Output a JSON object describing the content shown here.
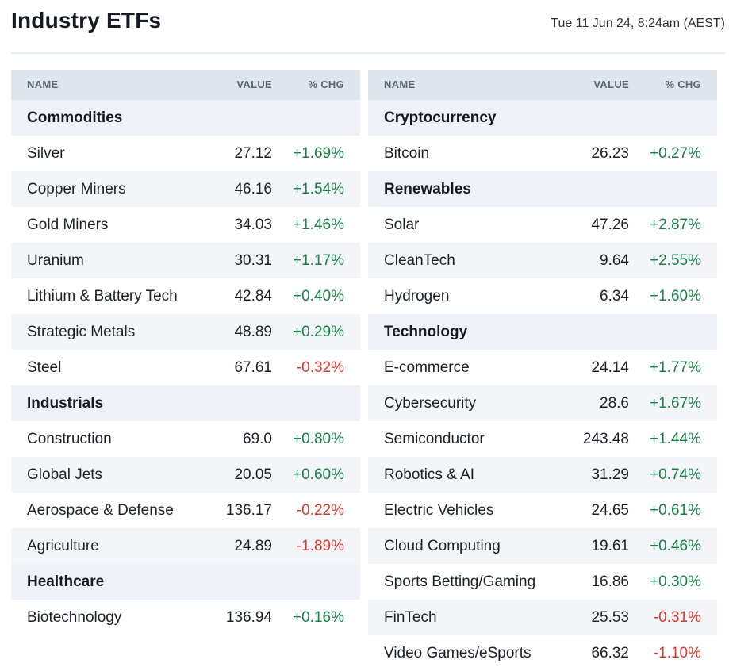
{
  "header": {
    "title": "Industry ETFs",
    "timestamp": "Tue 11 Jun 24, 8:24am (AEST)"
  },
  "columns": {
    "name": "NAME",
    "value": "VALUE",
    "change": "% CHG"
  },
  "colors": {
    "positive": "#1b7f4a",
    "negative": "#d63a2f",
    "header_bg": "#dfe5ec",
    "category_bg": "#eef1f5",
    "alt_row_bg": "#f3f5f8"
  },
  "left": {
    "commodities": {
      "label": "Commodities",
      "rows": [
        {
          "name": "Silver",
          "value": "27.12",
          "change": "+1.69%"
        },
        {
          "name": "Copper Miners",
          "value": "46.16",
          "change": "+1.54%"
        },
        {
          "name": "Gold Miners",
          "value": "34.03",
          "change": "+1.46%"
        },
        {
          "name": "Uranium",
          "value": "30.31",
          "change": "+1.17%"
        },
        {
          "name": "Lithium & Battery Tech",
          "value": "42.84",
          "change": "+0.40%"
        },
        {
          "name": "Strategic Metals",
          "value": "48.89",
          "change": "+0.29%"
        },
        {
          "name": "Steel",
          "value": "67.61",
          "change": "-0.32%"
        }
      ]
    },
    "industrials": {
      "label": "Industrials",
      "rows": [
        {
          "name": "Construction",
          "value": "69.0",
          "change": "+0.80%"
        },
        {
          "name": "Global Jets",
          "value": "20.05",
          "change": "+0.60%"
        },
        {
          "name": "Aerospace & Defense",
          "value": "136.17",
          "change": "-0.22%"
        },
        {
          "name": "Agriculture",
          "value": "24.89",
          "change": "-1.89%"
        }
      ]
    },
    "healthcare": {
      "label": "Healthcare",
      "rows": [
        {
          "name": "Biotechnology",
          "value": "136.94",
          "change": "+0.16%"
        }
      ]
    }
  },
  "right": {
    "cryptocurrency": {
      "label": "Cryptocurrency",
      "rows": [
        {
          "name": "Bitcoin",
          "value": "26.23",
          "change": "+0.27%"
        }
      ]
    },
    "renewables": {
      "label": "Renewables",
      "rows": [
        {
          "name": "Solar",
          "value": "47.26",
          "change": "+2.87%"
        },
        {
          "name": "CleanTech",
          "value": "9.64",
          "change": "+2.55%"
        },
        {
          "name": "Hydrogen",
          "value": "6.34",
          "change": "+1.60%"
        }
      ]
    },
    "technology": {
      "label": "Technology",
      "rows": [
        {
          "name": "E-commerce",
          "value": "24.14",
          "change": "+1.77%"
        },
        {
          "name": "Cybersecurity",
          "value": "28.6",
          "change": "+1.67%"
        },
        {
          "name": "Semiconductor",
          "value": "243.48",
          "change": "+1.44%"
        },
        {
          "name": "Robotics & AI",
          "value": "31.29",
          "change": "+0.74%"
        },
        {
          "name": "Electric Vehicles",
          "value": "24.65",
          "change": "+0.61%"
        },
        {
          "name": "Cloud Computing",
          "value": "19.61",
          "change": "+0.46%"
        },
        {
          "name": "Sports Betting/Gaming",
          "value": "16.86",
          "change": "+0.30%"
        },
        {
          "name": "FinTech",
          "value": "25.53",
          "change": "-0.31%"
        },
        {
          "name": "Video Games/eSports",
          "value": "66.32",
          "change": "-1.10%"
        }
      ]
    }
  }
}
